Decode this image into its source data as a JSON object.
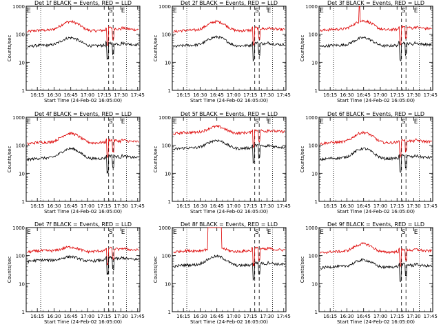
{
  "figure": {
    "common": {
      "ylabel": "Counts/sec",
      "xlabel": "Start Time (24-Feb-02 16:05:00)",
      "x_tick_labels": [
        "16:15",
        "16:30",
        "16:45",
        "17:00",
        "17:15",
        "17:30",
        "17:45"
      ],
      "y_tick_labels": [
        "1",
        "10",
        "100",
        "1000"
      ],
      "marker_labels": [
        "E",
        "S",
        "E"
      ],
      "series_colors": {
        "events": "#000000",
        "lld": "#dd0000"
      }
    }
  },
  "chart_data": [
    {
      "type": "line",
      "title": "Det 1f BLACK = Events, RED = LLD",
      "ylog": true,
      "ylim": [
        1,
        1000
      ],
      "xlim": [
        "16:05",
        "17:47"
      ],
      "markers": {
        "dotted": [
          "16:18",
          "17:35"
        ],
        "dashed": [
          "17:19",
          "17:23"
        ]
      },
      "series": [
        {
          "key": "lld",
          "base": 120,
          "peak": 300,
          "peak_time": "16:45",
          "spike": null
        },
        {
          "key": "events",
          "base": 35,
          "peak": 80,
          "peak_time": "16:45",
          "spike": null
        }
      ]
    },
    {
      "type": "line",
      "title": "Det 2f BLACK = Events, RED = LLD",
      "ylog": true,
      "ylim": [
        1,
        1000
      ],
      "xlim": [
        "16:05",
        "17:47"
      ],
      "markers": {
        "dotted": [
          "16:18",
          "17:35"
        ],
        "dashed": [
          "17:19",
          "17:23"
        ]
      },
      "series": [
        {
          "key": "lld",
          "base": 120,
          "peak": 300,
          "peak_time": "16:45",
          "spike": null
        },
        {
          "key": "events",
          "base": 35,
          "peak": 85,
          "peak_time": "16:45",
          "spike": null
        }
      ]
    },
    {
      "type": "line",
      "title": "Det 3f BLACK = Events, RED = LLD",
      "ylog": true,
      "ylim": [
        1,
        1000
      ],
      "xlim": [
        "16:05",
        "17:47"
      ],
      "markers": {
        "dotted": [
          "16:18",
          "17:35"
        ],
        "dashed": [
          "17:19",
          "17:23"
        ]
      },
      "series": [
        {
          "key": "lld",
          "base": 130,
          "peak": 320,
          "peak_time": "16:45",
          "spike": "16:41"
        },
        {
          "key": "events",
          "base": 35,
          "peak": 80,
          "peak_time": "16:45",
          "spike": null
        }
      ]
    },
    {
      "type": "line",
      "title": "Det 4f BLACK = Events, RED = LLD",
      "ylog": true,
      "ylim": [
        1,
        1000
      ],
      "xlim": [
        "16:05",
        "17:47"
      ],
      "markers": {
        "dotted": [
          "16:18",
          "17:35"
        ],
        "dashed": [
          "17:19",
          "17:23"
        ]
      },
      "series": [
        {
          "key": "lld",
          "base": 110,
          "peak": 280,
          "peak_time": "16:45",
          "spike": null
        },
        {
          "key": "events",
          "base": 30,
          "peak": 80,
          "peak_time": "16:45",
          "spike": null
        }
      ]
    },
    {
      "type": "line",
      "title": "Det 5f BLACK = Events, RED = LLD",
      "ylog": true,
      "ylim": [
        1,
        1000
      ],
      "xlim": [
        "16:05",
        "17:47"
      ],
      "markers": {
        "dotted": [
          "16:18",
          "17:35"
        ],
        "dashed": [
          "17:19",
          "17:23"
        ]
      },
      "series": [
        {
          "key": "lld",
          "base": 250,
          "peak": 500,
          "peak_time": "16:45",
          "spike": null
        },
        {
          "key": "events",
          "base": 70,
          "peak": 160,
          "peak_time": "16:45",
          "spike": null
        }
      ]
    },
    {
      "type": "line",
      "title": "Det 6f BLACK = Events, RED = LLD",
      "ylog": true,
      "ylim": [
        1,
        1000
      ],
      "xlim": [
        "16:05",
        "17:47"
      ],
      "markers": {
        "dotted": [
          "16:18",
          "17:35"
        ],
        "dashed": [
          "17:19",
          "17:23"
        ]
      },
      "series": [
        {
          "key": "lld",
          "base": 110,
          "peak": 300,
          "peak_time": "16:45",
          "spike": null
        },
        {
          "key": "events",
          "base": 30,
          "peak": 80,
          "peak_time": "16:45",
          "spike": null
        }
      ]
    },
    {
      "type": "line",
      "title": "Det 7f BLACK = Events, RED = LLD",
      "ylog": true,
      "ylim": [
        1,
        1000
      ],
      "xlim": [
        "16:05",
        "17:47"
      ],
      "markers": {
        "dotted": [
          "16:18",
          "17:35"
        ],
        "dashed": [
          "17:19",
          "17:23"
        ]
      },
      "series": [
        {
          "key": "lld",
          "base": 130,
          "peak": 220,
          "peak_time": "16:45",
          "spike": null
        },
        {
          "key": "events",
          "base": 60,
          "peak": 100,
          "peak_time": "16:45",
          "spike": null
        }
      ]
    },
    {
      "type": "line",
      "title": "Det 8f BLACK = Events, RED = LLD",
      "ylog": true,
      "ylim": [
        1,
        1000
      ],
      "xlim": [
        "16:05",
        "17:47"
      ],
      "markers": {
        "dotted": [
          "16:18",
          "17:35"
        ],
        "dashed": [
          "17:19",
          "17:23"
        ]
      },
      "series": [
        {
          "key": "lld",
          "base": 130,
          "peak": 220,
          "peak_time": "16:45",
          "spike": "16:37-16:49"
        },
        {
          "key": "events",
          "base": 40,
          "peak": 100,
          "peak_time": "16:45",
          "spike": null
        }
      ]
    },
    {
      "type": "line",
      "title": "Det 9f BLACK = Events, RED = LLD",
      "ylog": true,
      "ylim": [
        1,
        1000
      ],
      "xlim": [
        "16:05",
        "17:47"
      ],
      "markers": {
        "dotted": [
          "16:18",
          "17:35"
        ],
        "dashed": [
          "17:19",
          "17:23"
        ]
      },
      "series": [
        {
          "key": "lld",
          "base": 120,
          "peak": 280,
          "peak_time": "16:45",
          "spike": null
        },
        {
          "key": "events",
          "base": 35,
          "peak": 75,
          "peak_time": "16:45",
          "spike": null
        }
      ]
    }
  ]
}
